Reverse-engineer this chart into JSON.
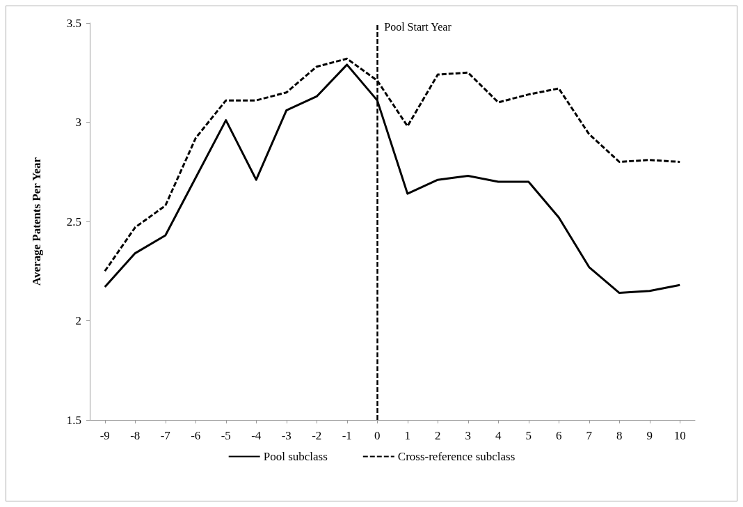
{
  "chart_data": {
    "type": "line",
    "ylabel": "Average Patents Per Year",
    "categories": [
      "-9",
      "-8",
      "-7",
      "-6",
      "-5",
      "-4",
      "-3",
      "-2",
      "-1",
      "0",
      "1",
      "2",
      "3",
      "4",
      "5",
      "6",
      "7",
      "8",
      "9",
      "10"
    ],
    "series": [
      {
        "name": "Pool subclass",
        "color": "#000000",
        "line_style": "solid",
        "values": [
          2.17,
          2.34,
          2.43,
          2.72,
          3.01,
          2.71,
          3.06,
          3.13,
          3.29,
          3.11,
          2.64,
          2.71,
          2.73,
          2.7,
          2.7,
          2.52,
          2.27,
          2.14,
          2.15,
          2.18
        ]
      },
      {
        "name": "Cross-reference subclass",
        "color": "#000000",
        "line_style": "dashed",
        "values": [
          2.25,
          2.47,
          2.58,
          2.92,
          3.11,
          3.11,
          3.15,
          3.28,
          3.32,
          3.21,
          2.98,
          3.24,
          3.25,
          3.1,
          3.14,
          3.17,
          2.94,
          2.8,
          2.81,
          2.8
        ]
      }
    ],
    "ylim": [
      1.5,
      3.5
    ],
    "yticks": [
      1.5,
      2,
      2.5,
      3,
      3.5
    ],
    "ref_lines": [
      {
        "axis": "x",
        "value": "0",
        "label": "Pool Start Year",
        "color": "#000000",
        "line_style": "dashed"
      }
    ],
    "grid": false,
    "legend": "bottom",
    "marker": "none"
  }
}
